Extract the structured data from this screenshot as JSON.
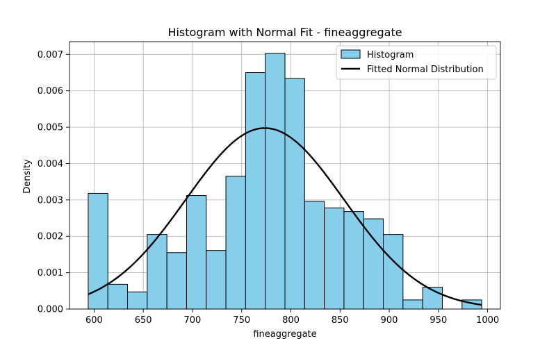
{
  "chart_data": {
    "type": "bar",
    "title": "Histogram with Normal Fit - fineaggregate",
    "xlabel": "fineaggregate",
    "ylabel": "Density",
    "xlim": [
      575,
      1013
    ],
    "ylim": [
      0,
      0.00735
    ],
    "x_ticks": [
      600,
      650,
      700,
      750,
      800,
      850,
      900,
      950,
      1000
    ],
    "y_ticks": [
      0.0,
      0.001,
      0.002,
      0.003,
      0.004,
      0.005,
      0.006,
      0.007
    ],
    "y_tick_labels": [
      "0.000",
      "0.001",
      "0.002",
      "0.003",
      "0.004",
      "0.005",
      "0.006",
      "0.007"
    ],
    "grid": true,
    "legend_position": "top-right",
    "bins": {
      "edges": [
        594,
        614,
        634,
        654,
        674,
        694,
        714,
        734,
        754,
        774,
        794,
        814,
        834,
        854,
        874,
        894,
        914,
        934,
        954,
        974,
        994
      ],
      "values": [
        0.00318,
        0.00068,
        0.00047,
        0.00205,
        0.00155,
        0.00312,
        0.00161,
        0.00365,
        0.0065,
        0.00703,
        0.00634,
        0.00296,
        0.00278,
        0.00268,
        0.00248,
        0.00205,
        0.00025,
        0.0006,
        0.0,
        0.00025
      ]
    },
    "series": [
      {
        "name": "Histogram",
        "kind": "histogram",
        "color": "#87ceeb",
        "edgecolor": "#000000"
      },
      {
        "name": "Fitted Normal Distribution",
        "kind": "line",
        "color": "#000000",
        "mean": 773.6,
        "std": 80.2
      }
    ]
  }
}
